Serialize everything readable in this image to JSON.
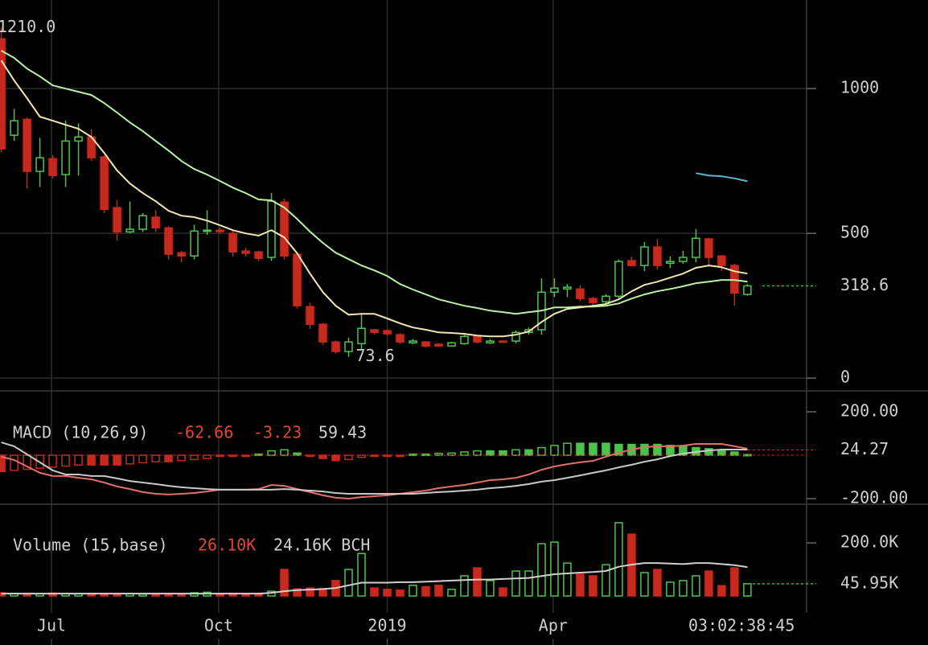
{
  "chart_data": [
    {
      "type": "candlestick",
      "open": [
        1172,
        839,
        894,
        714,
        758,
        703,
        819,
        833,
        764,
        589,
        505,
        514,
        556,
        519,
        433,
        422,
        508,
        511,
        500,
        439,
        436,
        417,
        608,
        428,
        247,
        186,
        125,
        92,
        119,
        167,
        164,
        150,
        122,
        125,
        117,
        111,
        119,
        144,
        122,
        128,
        128,
        158,
        167,
        297,
        308,
        308,
        275,
        264,
        283,
        406,
        389,
        453,
        397,
        403,
        417,
        481,
        422,
        389,
        289
      ],
      "high": [
        1210,
        930,
        900,
        830,
        770,
        890,
        880,
        860,
        770,
        615,
        610,
        570,
        580,
        525,
        440,
        530,
        580,
        520,
        510,
        450,
        440,
        640,
        620,
        435,
        260,
        190,
        130,
        140,
        225,
        170,
        168,
        155,
        135,
        128,
        120,
        125,
        150,
        150,
        135,
        130,
        165,
        175,
        345,
        345,
        325,
        320,
        280,
        290,
        410,
        420,
        470,
        480,
        420,
        440,
        515,
        485,
        425,
        395,
        325
      ],
      "low": [
        780,
        820,
        655,
        660,
        690,
        660,
        700,
        750,
        570,
        475,
        500,
        505,
        505,
        410,
        400,
        410,
        495,
        500,
        420,
        420,
        405,
        405,
        410,
        240,
        170,
        115,
        85,
        73.6,
        100,
        150,
        148,
        118,
        118,
        105,
        108,
        108,
        115,
        120,
        118,
        122,
        120,
        150,
        150,
        280,
        280,
        265,
        245,
        255,
        275,
        385,
        370,
        375,
        380,
        395,
        400,
        390,
        370,
        250,
        285
      ],
      "close": [
        792,
        889,
        714,
        761,
        700,
        819,
        833,
        761,
        583,
        505,
        514,
        561,
        519,
        428,
        422,
        508,
        511,
        506,
        436,
        431,
        414,
        611,
        422,
        250,
        186,
        125,
        92,
        125,
        172,
        158,
        153,
        125,
        128,
        111,
        111,
        122,
        144,
        125,
        128,
        125,
        158,
        167,
        297,
        311,
        314,
        275,
        261,
        283,
        403,
        389,
        453,
        389,
        403,
        417,
        483,
        417,
        389,
        294,
        318.6
      ],
      "up_color": "#4cc44c",
      "down_color": "#c9281e",
      "lines": [
        {
          "color": "#b9f0a6",
          "values": [
            1131,
            1106,
            1069,
            1042,
            1011,
            1000,
            989,
            978,
            950,
            917,
            883,
            853,
            819,
            786,
            750,
            722,
            703,
            681,
            658,
            639,
            617,
            614,
            589,
            550,
            506,
            467,
            433,
            411,
            389,
            372,
            353,
            325,
            306,
            289,
            272,
            261,
            250,
            242,
            233,
            228,
            222,
            228,
            233,
            244,
            244,
            247,
            247,
            250,
            258,
            275,
            289,
            300,
            308,
            317,
            328,
            333,
            339,
            339,
            333
          ]
        },
        {
          "color": "#efe6b2",
          "values": [
            1097,
            1028,
            967,
            903,
            889,
            875,
            861,
            833,
            778,
            717,
            672,
            639,
            611,
            578,
            561,
            556,
            544,
            528,
            511,
            500,
            492,
            511,
            486,
            431,
            361,
            297,
            250,
            219,
            222,
            222,
            206,
            189,
            175,
            167,
            158,
            156,
            153,
            147,
            144,
            144,
            150,
            161,
            194,
            222,
            239,
            244,
            250,
            256,
            272,
            300,
            322,
            333,
            347,
            361,
            381,
            389,
            383,
            369,
            361
          ]
        },
        {
          "color": "#5bb8d4",
          "values": [
            null,
            null,
            null,
            null,
            null,
            null,
            null,
            null,
            null,
            null,
            null,
            null,
            null,
            null,
            null,
            null,
            null,
            null,
            null,
            null,
            null,
            null,
            null,
            null,
            null,
            null,
            null,
            null,
            null,
            null,
            null,
            null,
            null,
            null,
            null,
            null,
            null,
            null,
            null,
            null,
            null,
            null,
            null,
            null,
            null,
            null,
            null,
            null,
            null,
            null,
            null,
            null,
            null,
            null,
            708,
            700,
            697,
            690,
            680
          ]
        }
      ],
      "high_label": {
        "value": 1210,
        "label": "1210.0"
      },
      "low_label": 73.6,
      "last_value": 318.6,
      "ylim": [
        -44,
        1306
      ],
      "yticks": [
        0,
        500,
        1000
      ],
      "grid": true
    },
    {
      "type": "histogram",
      "label": "MACD (10,26,9)",
      "readouts": [
        {
          "value": -62.66,
          "color": "#e0473a"
        },
        {
          "value": -3.23,
          "color": "#e0473a"
        },
        {
          "value": 59.43,
          "color": "#cfcfcf"
        }
      ],
      "values": [
        -75,
        -70,
        -65,
        -60,
        -55,
        -50,
        -45,
        -45,
        -45,
        -45,
        -40,
        -35,
        -30,
        -30,
        -25,
        -20,
        -15,
        -5,
        -5,
        -5,
        5,
        20,
        25,
        10,
        -5,
        -15,
        -25,
        -20,
        -10,
        -5,
        -3,
        -3,
        5,
        5,
        8,
        10,
        15,
        20,
        20,
        20,
        25,
        25,
        35,
        45,
        55,
        55,
        55,
        55,
        50,
        50,
        50,
        50,
        45,
        40,
        35,
        30,
        25,
        15,
        3
      ],
      "up_color": "#4cc44c",
      "down_color": "#c9281e",
      "lines": [
        {
          "color": "#e0706a",
          "values": [
            -7,
            -22,
            -52,
            -81,
            -96,
            -96,
            -104,
            -111,
            -126,
            -144,
            -156,
            -170,
            -178,
            -181,
            -178,
            -174,
            -167,
            -159,
            -159,
            -159,
            -156,
            -137,
            -141,
            -156,
            -170,
            -185,
            -196,
            -200,
            -193,
            -189,
            -185,
            -178,
            -170,
            -163,
            -152,
            -144,
            -137,
            -126,
            -115,
            -111,
            -104,
            -89,
            -67,
            -52,
            -41,
            -33,
            -26,
            -7,
            11,
            26,
            37,
            41,
            41,
            44,
            52,
            52,
            52,
            41,
            30
          ]
        },
        {
          "color": "#c8c8c8",
          "values": [
            59,
            41,
            4,
            -33,
            -70,
            -89,
            -89,
            -96,
            -96,
            -107,
            -119,
            -126,
            -133,
            -141,
            -148,
            -152,
            -156,
            -159,
            -159,
            -159,
            -159,
            -159,
            -156,
            -159,
            -163,
            -167,
            -174,
            -178,
            -178,
            -178,
            -178,
            -178,
            -178,
            -174,
            -170,
            -167,
            -163,
            -159,
            -152,
            -148,
            -141,
            -133,
            -122,
            -115,
            -104,
            -93,
            -81,
            -70,
            -56,
            -44,
            -30,
            -19,
            -4,
            7,
            15,
            22,
            26,
            26,
            26
          ]
        }
      ],
      "last_value": 24.27,
      "last_color": "#c9281e",
      "ylim": [
        -226,
        252
      ],
      "yticks": [
        {
          "value": -200,
          "label": "-200.00"
        },
        {
          "value": 200,
          "label": "200.00"
        }
      ]
    },
    {
      "type": "volume",
      "label": "Volume (15,base)",
      "readouts": [
        {
          "value": 26100,
          "label": "26.10K",
          "color": "#e0473a"
        },
        {
          "value": 24160,
          "label": "24.16K BCH",
          "color": "#cfcfcf"
        }
      ],
      "values": [
        12000,
        10000,
        9000,
        8000,
        11000,
        9000,
        8000,
        10000,
        9000,
        8000,
        9000,
        7000,
        8000,
        9000,
        8000,
        12000,
        14000,
        9000,
        10000,
        8000,
        9000,
        18000,
        100000,
        27000,
        30000,
        28000,
        58000,
        100000,
        160000,
        30000,
        25000,
        22000,
        40000,
        35000,
        40000,
        25000,
        76000,
        106000,
        58000,
        30000,
        94000,
        94000,
        197000,
        203000,
        124000,
        82000,
        76000,
        118000,
        276000,
        233000,
        88000,
        100000,
        52000,
        58000,
        76000,
        94000,
        39000,
        106000,
        45950
      ],
      "lines": [
        {
          "color": "#d0d0d0",
          "values": [
            9000,
            9000,
            9000,
            9000,
            9000,
            9000,
            9000,
            9000,
            9000,
            9000,
            9000,
            9000,
            9000,
            9000,
            9000,
            9000,
            9000,
            9000,
            9000,
            9000,
            9000,
            12000,
            18000,
            22000,
            24000,
            26000,
            30000,
            40000,
            50000,
            50000,
            50000,
            52000,
            52000,
            54000,
            56000,
            58000,
            60000,
            62000,
            62000,
            64000,
            66000,
            68000,
            75000,
            82000,
            85000,
            88000,
            90000,
            94000,
            110000,
            118000,
            124000,
            124000,
            122000,
            120000,
            124000,
            124000,
            120000,
            116000,
            109000
          ]
        }
      ],
      "last_value": {
        "value": 45950,
        "label": "45.95K"
      },
      "last_color": "#4cc44c",
      "ylim": [
        -12000,
        282000
      ],
      "yticks": [
        {
          "value": 200000,
          "label": "200.0K"
        }
      ],
      "xlim": [
        -0.1,
        62.6
      ],
      "xticks": [
        {
          "value": 3.9,
          "label": "Jul"
        },
        {
          "value": 16.9,
          "label": "Oct"
        },
        {
          "value": 30,
          "label": "2019"
        },
        {
          "value": 42.9,
          "label": "Apr"
        }
      ],
      "countdown": "03:02:38:45"
    }
  ]
}
